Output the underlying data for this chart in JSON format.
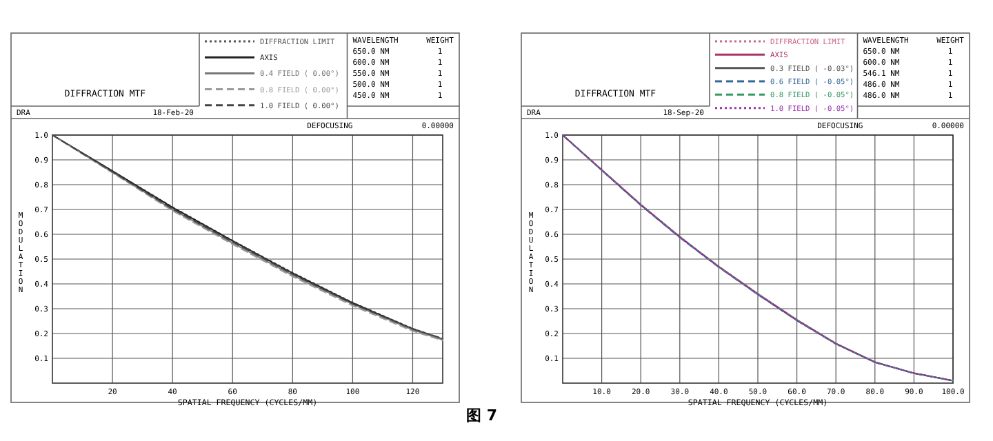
{
  "chart_data": [
    {
      "type": "line",
      "title": "DIFFRACTION MTF",
      "xlabel": "SPATIAL FREQUENCY (CYCLES/MM)",
      "ylabel": "MODULATION",
      "x": [
        0,
        20,
        40,
        60,
        80,
        100,
        120,
        130
      ],
      "xlim": [
        0,
        130
      ],
      "xticks": [
        20,
        40,
        60,
        80,
        100,
        120
      ],
      "ylim": [
        0,
        1
      ],
      "yticks": [
        0.1,
        0.2,
        0.3,
        0.4,
        0.5,
        0.6,
        0.7,
        0.8,
        0.9,
        {
          "value": 1,
          "label": "1.0"
        }
      ],
      "grid": true,
      "legend": "top",
      "annotations": [
        "DRA",
        "18-Feb-20",
        "WAVELENGTH",
        "WEIGHT",
        "650.0 NM",
        "1",
        "600.0 NM",
        "1",
        "550.0 NM",
        "1",
        "500.0 NM",
        "1",
        "450.0 NM",
        "1",
        "DEFOCUSING",
        "0.00000",
        "图 7"
      ],
      "series": [
        {
          "name": "DIFFRACTION LIMIT",
          "color": "#555555",
          "line_style": "dotted",
          "values": [
            1,
            0.855,
            0.71,
            0.575,
            0.445,
            0.325,
            0.22,
            0.178
          ]
        },
        {
          "name": "AXIS",
          "color": "#222222",
          "line_style": "solid",
          "values": [
            1,
            0.855,
            0.708,
            0.573,
            0.443,
            0.323,
            0.218,
            0.177
          ]
        },
        {
          "name": "0.4 FIELD ( 0.00°)",
          "color": "#777777",
          "line_style": "solid",
          "values": [
            1,
            0.85,
            0.7,
            0.565,
            0.435,
            0.318,
            0.215,
            0.175
          ]
        },
        {
          "name": "0.8 FIELD ( 0.00°)",
          "color": "#999999",
          "line_style": "dashed",
          "values": [
            1,
            0.848,
            0.695,
            0.56,
            0.43,
            0.312,
            0.21,
            0.172
          ]
        },
        {
          "name": "1.0 FIELD ( 0.00°)",
          "color": "#444444",
          "line_style": "dashed",
          "values": [
            1,
            0.852,
            0.702,
            0.57,
            0.44,
            0.32,
            0.218,
            0.18
          ]
        }
      ]
    },
    {
      "type": "line",
      "title": "DIFFRACTION MTF",
      "xlabel": "SPATIAL FREQUENCY (CYCLES/MM)",
      "ylabel": "MODULATION",
      "x": [
        0,
        10,
        20,
        30,
        40,
        50,
        60,
        70,
        80,
        90,
        100
      ],
      "xlim": [
        0,
        100
      ],
      "xticks": [
        {
          "value": 10,
          "label": "10.0"
        },
        {
          "value": 20,
          "label": "20.0"
        },
        {
          "value": 30,
          "label": "30.0"
        },
        {
          "value": 40,
          "label": "40.0"
        },
        {
          "value": 50,
          "label": "50.0"
        },
        {
          "value": 60,
          "label": "60.0"
        },
        {
          "value": 70,
          "label": "70.0"
        },
        {
          "value": 80,
          "label": "80.0"
        },
        {
          "value": 90,
          "label": "90.0"
        },
        {
          "value": 100,
          "label": "100.0"
        }
      ],
      "ylim": [
        0,
        1
      ],
      "yticks": [
        0.1,
        0.2,
        0.3,
        0.4,
        0.5,
        0.6,
        0.7,
        0.8,
        0.9,
        {
          "value": 1,
          "label": "1.0"
        }
      ],
      "grid": true,
      "legend": "top",
      "annotations": [
        "DRA",
        "18-Sep-20",
        "WAVELENGTH",
        "WEIGHT",
        "650.0 NM",
        "1",
        "600.0 NM",
        "1",
        "546.1 NM",
        "1",
        "486.0 NM",
        "1",
        "486.0 NM",
        "1",
        "DEFOCUSING",
        "0.00000"
      ],
      "series": [
        {
          "name": "DIFFRACTION LIMIT",
          "color": "#cc6688",
          "line_style": "dotted",
          "values": [
            1,
            0.86,
            0.72,
            0.59,
            0.47,
            0.36,
            0.255,
            0.16,
            0.085,
            0.04,
            0.01
          ]
        },
        {
          "name": "AXIS",
          "color": "#aa3366",
          "line_style": "solid",
          "values": [
            1,
            0.86,
            0.72,
            0.59,
            0.47,
            0.36,
            0.255,
            0.16,
            0.085,
            0.04,
            0.01
          ]
        },
        {
          "name": "0.3 FIELD ( -0.03°)",
          "color": "#555555",
          "line_style": "solid",
          "values": [
            1,
            0.858,
            0.718,
            0.588,
            0.468,
            0.358,
            0.253,
            0.159,
            0.084,
            0.04,
            0.01
          ]
        },
        {
          "name": "0.6 FIELD ( -0.05°)",
          "color": "#336699",
          "line_style": "dashed",
          "values": [
            1,
            0.858,
            0.717,
            0.587,
            0.467,
            0.357,
            0.252,
            0.158,
            0.084,
            0.039,
            0.01
          ]
        },
        {
          "name": "0.8 FIELD ( -0.05°)",
          "color": "#339966",
          "line_style": "dashed",
          "values": [
            1,
            0.859,
            0.719,
            0.589,
            0.469,
            0.359,
            0.254,
            0.159,
            0.085,
            0.04,
            0.01
          ]
        },
        {
          "name": "1.0 FIELD ( -0.05°)",
          "color": "#9933aa",
          "line_style": "dotted",
          "values": [
            1,
            0.859,
            0.718,
            0.588,
            0.468,
            0.358,
            0.253,
            0.158,
            0.084,
            0.04,
            0.01
          ]
        }
      ]
    }
  ]
}
